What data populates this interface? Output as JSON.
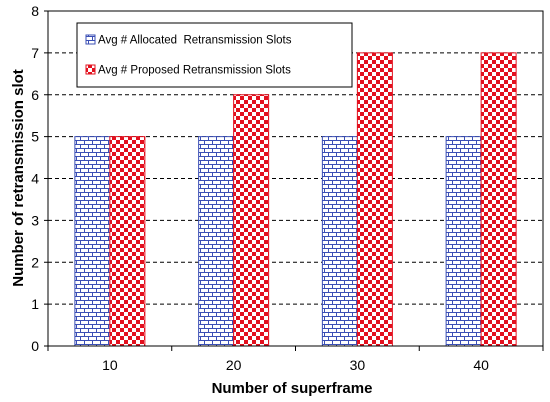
{
  "chart_data": {
    "type": "bar",
    "categories": [
      "10",
      "20",
      "30",
      "40"
    ],
    "series": [
      {
        "name": "Avg # Allocated  Retransmission Slots",
        "values": [
          5,
          5,
          5,
          5
        ],
        "color": "#3b4fb5",
        "pattern": "brick"
      },
      {
        "name": "Avg # Proposed Retransmission Slots",
        "values": [
          5,
          6,
          7,
          7
        ],
        "color": "#e3101e",
        "pattern": "checkerboard"
      }
    ],
    "xlabel": "Number of superframe",
    "ylabel": "Number of  retransmission  slot",
    "ylim": [
      0,
      8
    ],
    "yticks": [
      "0",
      "1",
      "2",
      "3",
      "4",
      "5",
      "6",
      "7",
      "8"
    ],
    "grid": "horizontal dashed",
    "legend_position": "top-left"
  }
}
